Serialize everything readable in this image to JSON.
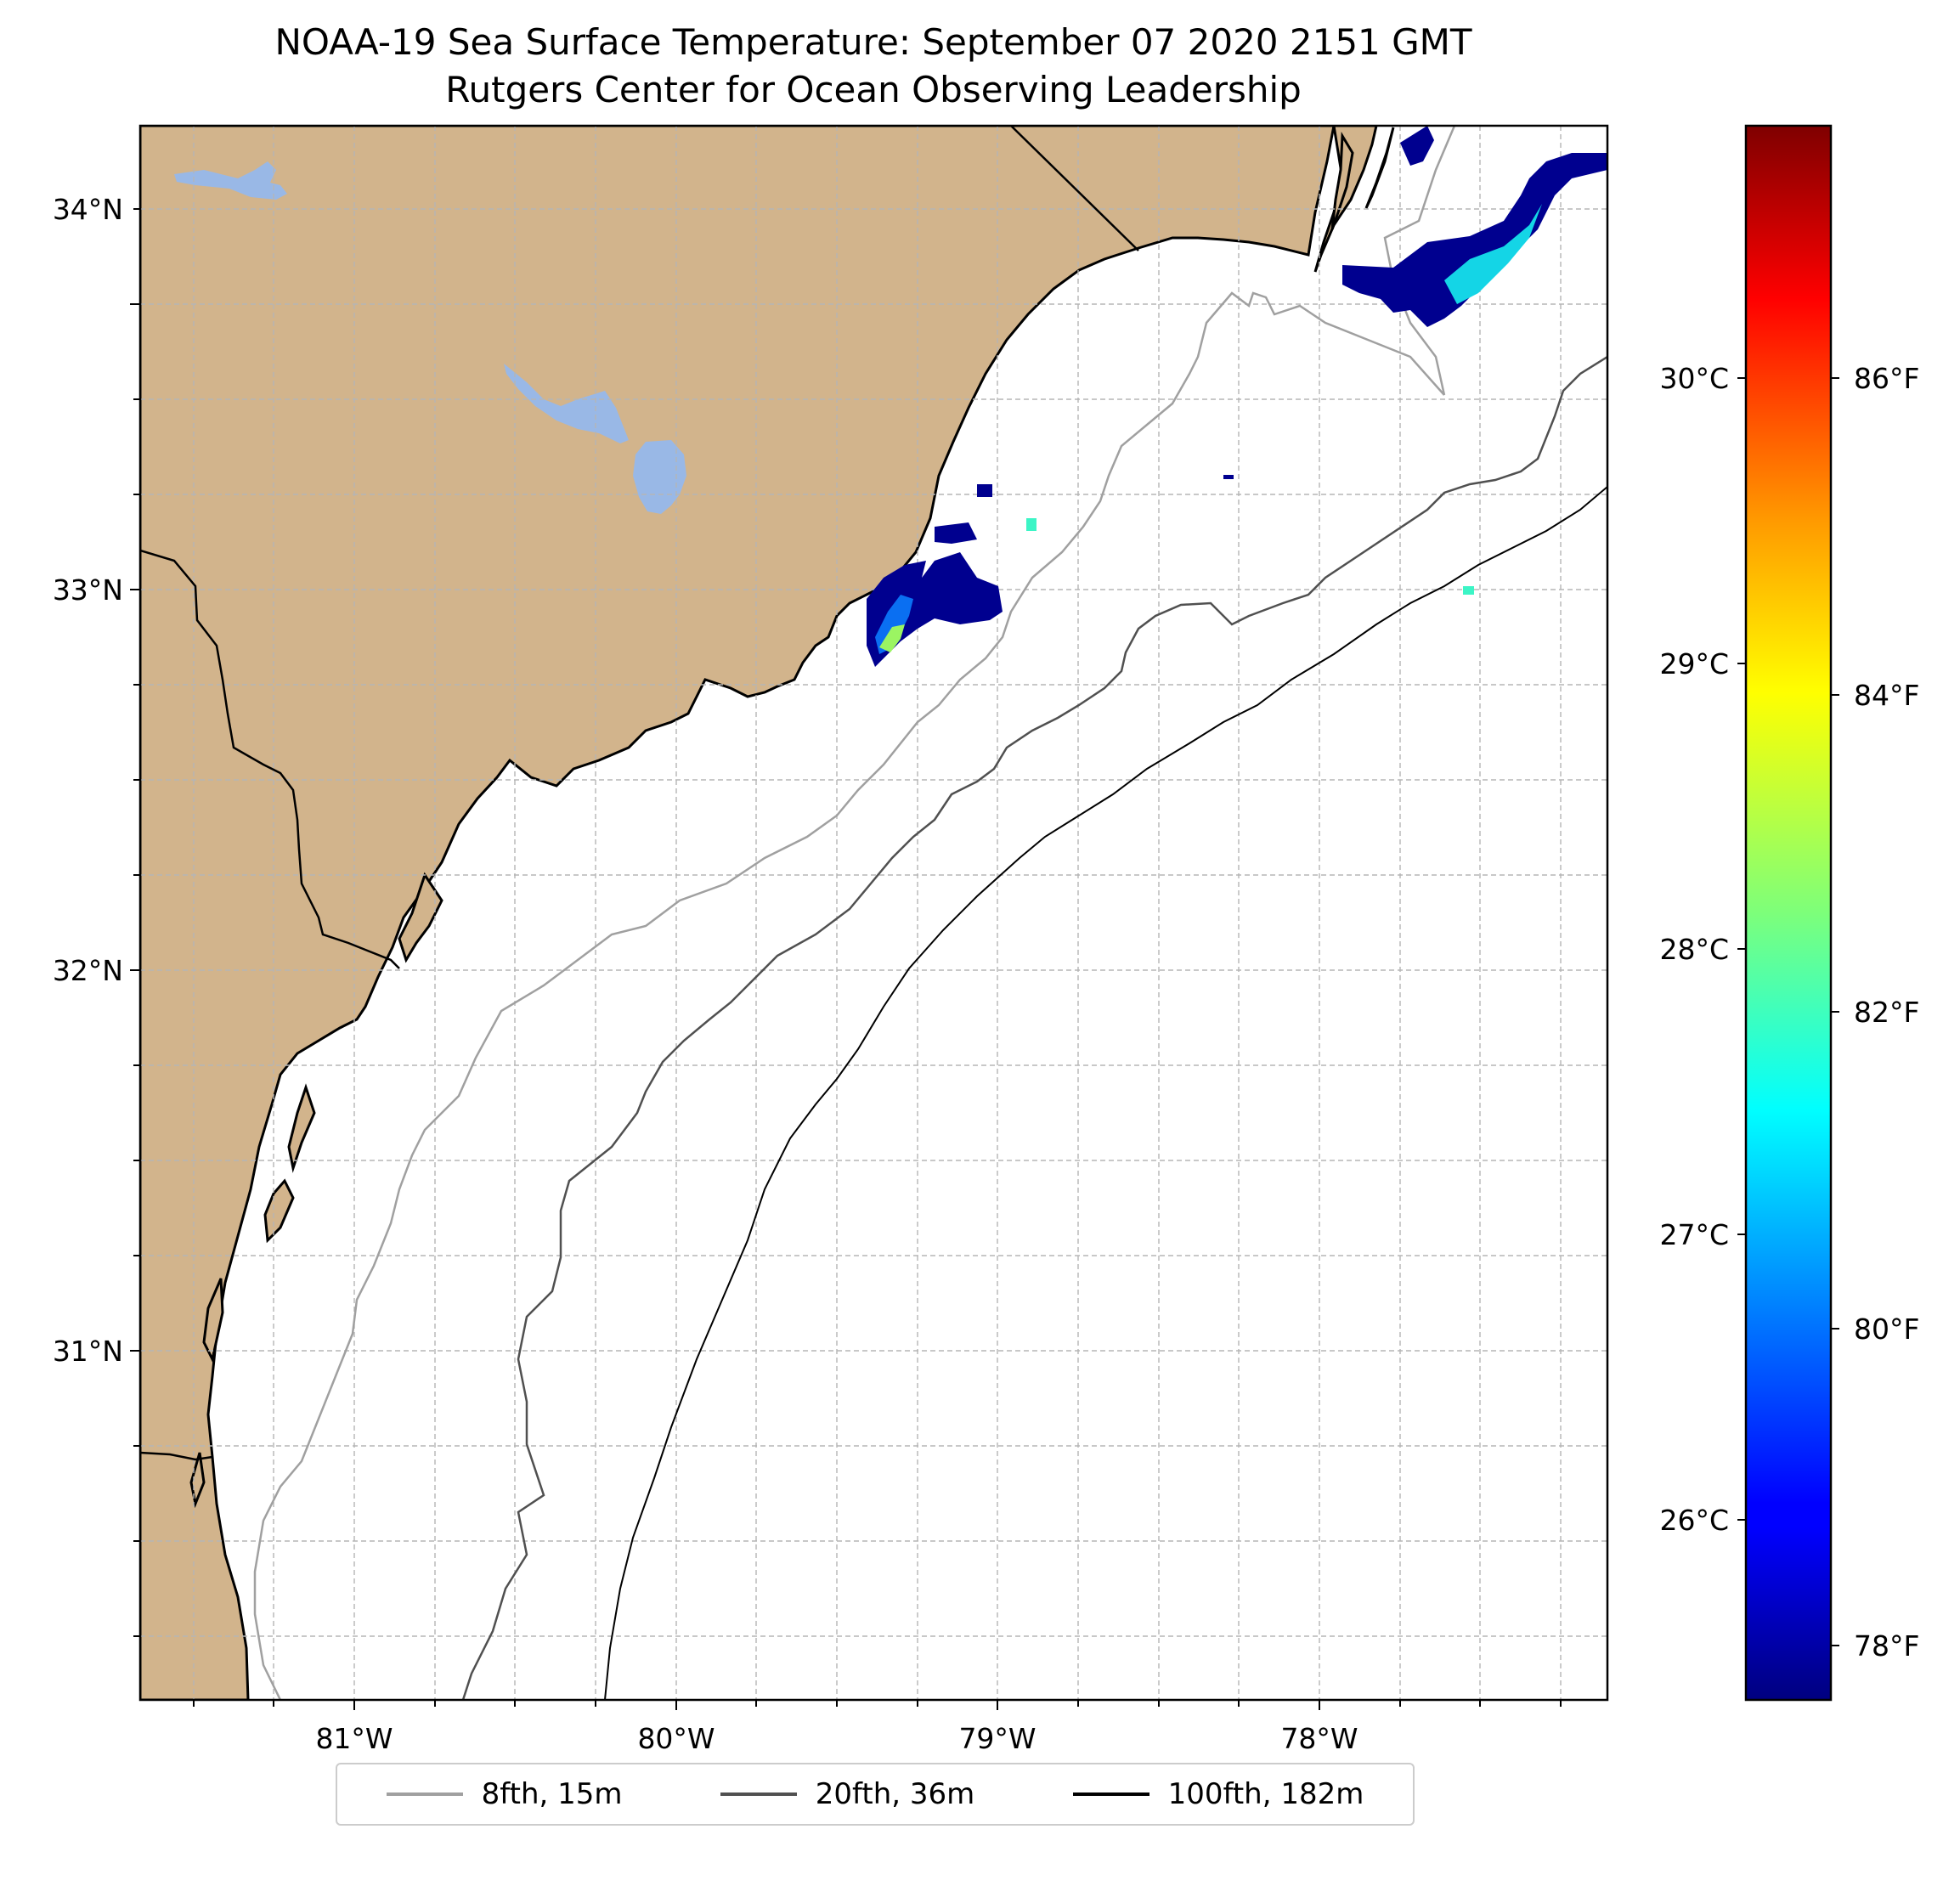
{
  "title": {
    "line1": "NOAA-19 Sea Surface Temperature: September 07 2020 2151 GMT",
    "line2": "Rutgers Center for Ocean Observing Leadership"
  },
  "map": {
    "lon_range": [
      -81.68,
      -77.12
    ],
    "lat_range": [
      30.27,
      34.22
    ],
    "x_ticks": [
      "81°W",
      "80°W",
      "79°W",
      "78°W"
    ],
    "y_ticks": [
      "34°N",
      "33°N",
      "32°N",
      "31°N"
    ],
    "colors": {
      "land": "#d2b48c",
      "lake": "#99b8e6",
      "ocean": "#ffffff",
      "grid": "#b5b5b5"
    }
  },
  "colorbar": {
    "celsius_ticks": [
      "30°C",
      "29°C",
      "28°C",
      "27°C",
      "26°C"
    ],
    "fahrenheit_ticks": [
      "86°F",
      "84°F",
      "82°F",
      "80°F",
      "78°F"
    ],
    "colormap": "jet"
  },
  "legend": {
    "items": [
      {
        "label": "8fth, 15m",
        "color": "#a0a0a0"
      },
      {
        "label": "20fth, 36m",
        "color": "#505050"
      },
      {
        "label": "100fth, 182m",
        "color": "#000000"
      }
    ]
  }
}
